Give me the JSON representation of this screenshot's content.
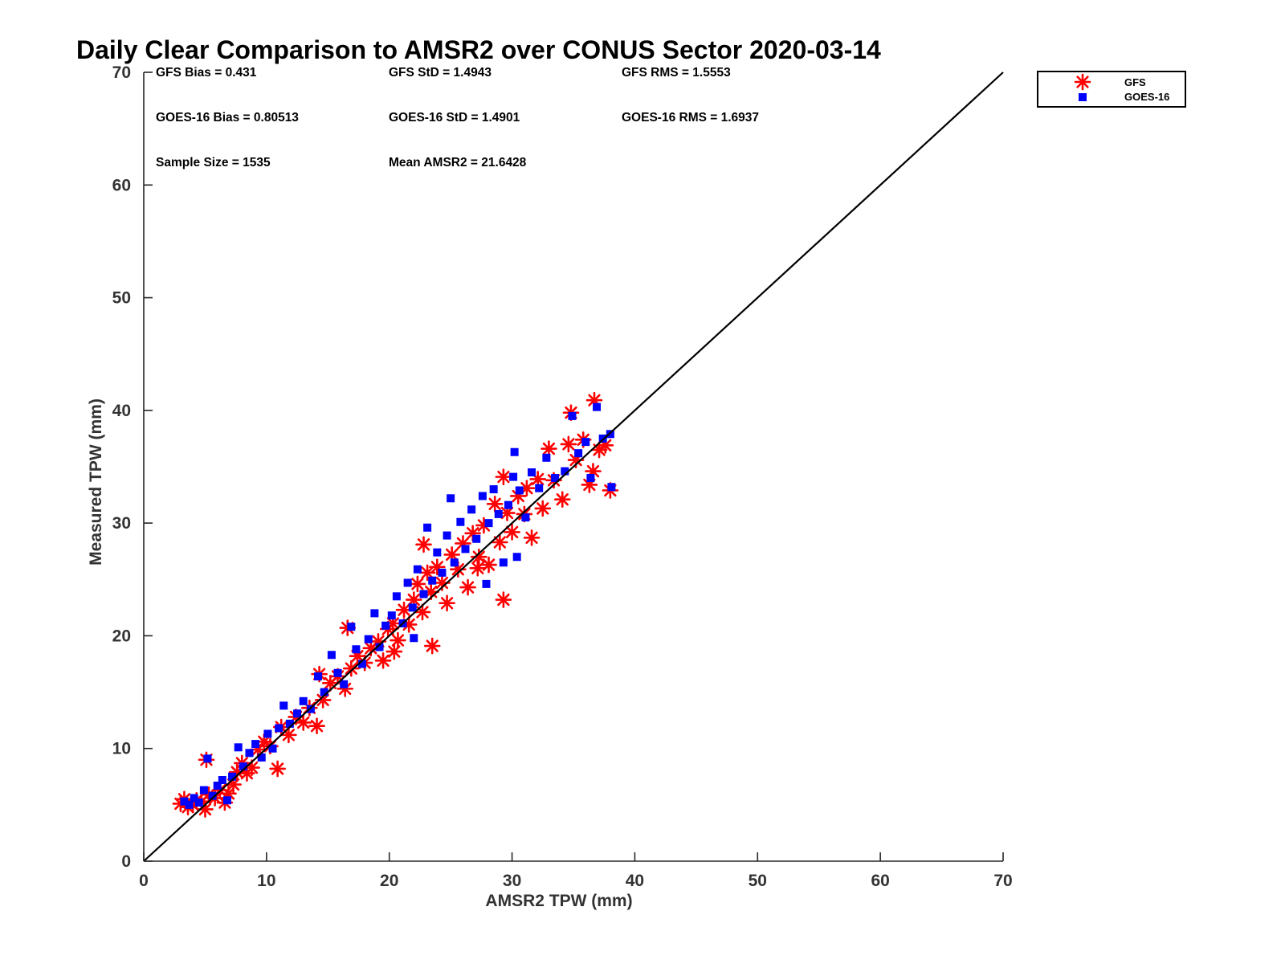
{
  "chart_data": {
    "type": "scatter",
    "title": "Daily Clear Comparison to AMSR2 over CONUS Sector 2020-03-14",
    "xlabel": "AMSR2 TPW (mm)",
    "ylabel": "Measured TPW (mm)",
    "xlim": [
      0,
      70
    ],
    "ylim": [
      0,
      70
    ],
    "xticks": [
      "0",
      "10",
      "20",
      "30",
      "40",
      "50",
      "60",
      "70"
    ],
    "yticks": [
      "0",
      "10",
      "20",
      "30",
      "40",
      "50",
      "60",
      "70"
    ],
    "grid": false,
    "legend_position": "top-right-outside",
    "reference_line": {
      "from": [
        0,
        0
      ],
      "to": [
        70,
        70
      ],
      "color": "#000000"
    },
    "stats": [
      {
        "text": "GFS Bias = 0.431",
        "row": 0,
        "col": 0
      },
      {
        "text": "GFS StD = 1.4943",
        "row": 0,
        "col": 1
      },
      {
        "text": "GFS RMS = 1.5553",
        "row": 0,
        "col": 2
      },
      {
        "text": "GOES-16 Bias = 0.80513",
        "row": 1,
        "col": 0
      },
      {
        "text": "GOES-16 StD = 1.4901",
        "row": 1,
        "col": 1
      },
      {
        "text": "GOES-16 RMS = 1.6937",
        "row": 1,
        "col": 2
      },
      {
        "text": "Sample Size = 1535",
        "row": 2,
        "col": 0
      },
      {
        "text": "Mean AMSR2 = 21.6428",
        "row": 2,
        "col": 1
      }
    ],
    "series": [
      {
        "name": "GFS",
        "marker": "asterisk",
        "color": "#ff0000",
        "points": [
          [
            3.0,
            5.1
          ],
          [
            3.3,
            5.5
          ],
          [
            3.6,
            4.8
          ],
          [
            4.0,
            5.0
          ],
          [
            4.3,
            5.4
          ],
          [
            4.7,
            5.3
          ],
          [
            5.0,
            4.6
          ],
          [
            5.3,
            5.9
          ],
          [
            5.1,
            9.0
          ],
          [
            5.8,
            5.6
          ],
          [
            6.2,
            6.3
          ],
          [
            6.6,
            5.2
          ],
          [
            6.9,
            6.0
          ],
          [
            7.3,
            6.8
          ],
          [
            7.6,
            7.9
          ],
          [
            8.0,
            8.7
          ],
          [
            8.4,
            7.8
          ],
          [
            8.8,
            8.3
          ],
          [
            9.3,
            9.9
          ],
          [
            9.8,
            10.6
          ],
          [
            10.3,
            10.2
          ],
          [
            10.9,
            8.2
          ],
          [
            11.2,
            11.9
          ],
          [
            11.8,
            11.2
          ],
          [
            12.4,
            12.8
          ],
          [
            13.0,
            12.3
          ],
          [
            13.5,
            13.6
          ],
          [
            14.1,
            12.0
          ],
          [
            14.6,
            14.3
          ],
          [
            14.3,
            16.6
          ],
          [
            15.2,
            15.8
          ],
          [
            15.8,
            16.4
          ],
          [
            16.4,
            15.3
          ],
          [
            16.9,
            17.1
          ],
          [
            16.6,
            20.7
          ],
          [
            17.4,
            18.2
          ],
          [
            18.0,
            17.6
          ],
          [
            18.5,
            18.9
          ],
          [
            19.1,
            19.5
          ],
          [
            19.5,
            17.8
          ],
          [
            19.9,
            20.6
          ],
          [
            20.3,
            21.1
          ],
          [
            20.7,
            19.6
          ],
          [
            21.2,
            22.3
          ],
          [
            21.6,
            21.0
          ],
          [
            22.0,
            23.2
          ],
          [
            22.3,
            24.6
          ],
          [
            22.7,
            22.1
          ],
          [
            23.1,
            25.6
          ],
          [
            23.4,
            23.9
          ],
          [
            23.5,
            19.1
          ],
          [
            23.9,
            26.1
          ],
          [
            22.8,
            28.1
          ],
          [
            24.3,
            24.7
          ],
          [
            24.7,
            22.9
          ],
          [
            25.1,
            27.2
          ],
          [
            25.6,
            25.9
          ],
          [
            26.0,
            28.2
          ],
          [
            26.4,
            24.3
          ],
          [
            26.8,
            29.1
          ],
          [
            27.3,
            27.0
          ],
          [
            27.7,
            29.8
          ],
          [
            28.1,
            26.3
          ],
          [
            28.6,
            31.7
          ],
          [
            29.0,
            28.3
          ],
          [
            29.3,
            23.2
          ],
          [
            29.6,
            30.9
          ],
          [
            29.3,
            34.1
          ],
          [
            30.0,
            29.2
          ],
          [
            30.5,
            32.4
          ],
          [
            31.0,
            30.8
          ],
          [
            31.6,
            28.7
          ],
          [
            32.1,
            33.9
          ],
          [
            32.5,
            31.3
          ],
          [
            33.0,
            36.6
          ],
          [
            33.4,
            33.8
          ],
          [
            34.1,
            32.1
          ],
          [
            34.6,
            37.0
          ],
          [
            34.8,
            39.8
          ],
          [
            35.2,
            35.6
          ],
          [
            35.8,
            37.4
          ],
          [
            36.3,
            33.4
          ],
          [
            36.7,
            40.9
          ],
          [
            37.1,
            36.5
          ],
          [
            37.6,
            36.9
          ],
          [
            38.0,
            32.9
          ],
          [
            36.6,
            34.6
          ],
          [
            20.4,
            18.6
          ],
          [
            27.2,
            26.0
          ],
          [
            31.2,
            33.1
          ]
        ]
      },
      {
        "name": "GOES-16",
        "marker": "square",
        "color": "#0000ff",
        "points": [
          [
            3.3,
            5.3
          ],
          [
            3.7,
            5.0
          ],
          [
            4.1,
            5.6
          ],
          [
            4.5,
            5.2
          ],
          [
            4.9,
            6.3
          ],
          [
            5.2,
            9.1
          ],
          [
            5.6,
            5.8
          ],
          [
            6.0,
            6.7
          ],
          [
            6.4,
            7.2
          ],
          [
            6.8,
            5.4
          ],
          [
            7.2,
            7.5
          ],
          [
            7.7,
            10.1
          ],
          [
            8.1,
            8.4
          ],
          [
            8.6,
            9.6
          ],
          [
            9.1,
            10.4
          ],
          [
            9.6,
            9.2
          ],
          [
            10.1,
            11.3
          ],
          [
            10.5,
            10.0
          ],
          [
            11.0,
            11.8
          ],
          [
            11.4,
            13.8
          ],
          [
            11.9,
            12.2
          ],
          [
            12.5,
            13.1
          ],
          [
            13.0,
            14.2
          ],
          [
            13.6,
            13.5
          ],
          [
            14.2,
            16.4
          ],
          [
            14.7,
            15.0
          ],
          [
            15.3,
            18.3
          ],
          [
            15.8,
            16.7
          ],
          [
            16.3,
            15.7
          ],
          [
            16.9,
            20.8
          ],
          [
            17.3,
            18.8
          ],
          [
            17.8,
            17.5
          ],
          [
            18.3,
            19.7
          ],
          [
            18.8,
            22.0
          ],
          [
            19.2,
            19.0
          ],
          [
            19.7,
            20.9
          ],
          [
            20.2,
            21.8
          ],
          [
            20.6,
            23.5
          ],
          [
            21.1,
            21.1
          ],
          [
            21.5,
            24.7
          ],
          [
            21.9,
            22.5
          ],
          [
            22.3,
            25.9
          ],
          [
            22.8,
            23.7
          ],
          [
            23.1,
            29.6
          ],
          [
            23.5,
            24.9
          ],
          [
            23.9,
            27.4
          ],
          [
            24.3,
            25.6
          ],
          [
            24.7,
            28.9
          ],
          [
            25.0,
            32.2
          ],
          [
            25.3,
            26.5
          ],
          [
            25.8,
            30.1
          ],
          [
            26.2,
            27.7
          ],
          [
            26.7,
            31.2
          ],
          [
            27.1,
            28.6
          ],
          [
            27.6,
            32.4
          ],
          [
            27.9,
            24.6
          ],
          [
            28.1,
            30.0
          ],
          [
            28.5,
            33.0
          ],
          [
            28.9,
            30.8
          ],
          [
            29.3,
            26.5
          ],
          [
            29.7,
            31.6
          ],
          [
            30.1,
            34.1
          ],
          [
            30.2,
            36.3
          ],
          [
            30.6,
            32.9
          ],
          [
            31.1,
            30.5
          ],
          [
            31.6,
            34.5
          ],
          [
            32.2,
            33.1
          ],
          [
            32.8,
            35.8
          ],
          [
            33.5,
            34.0
          ],
          [
            34.3,
            34.6
          ],
          [
            34.9,
            39.5
          ],
          [
            35.4,
            36.2
          ],
          [
            36.0,
            37.2
          ],
          [
            36.4,
            34.0
          ],
          [
            36.9,
            40.3
          ],
          [
            37.4,
            37.5
          ],
          [
            38.0,
            37.9
          ],
          [
            38.1,
            33.2
          ],
          [
            30.4,
            27.0
          ],
          [
            22.0,
            19.8
          ]
        ]
      }
    ]
  }
}
